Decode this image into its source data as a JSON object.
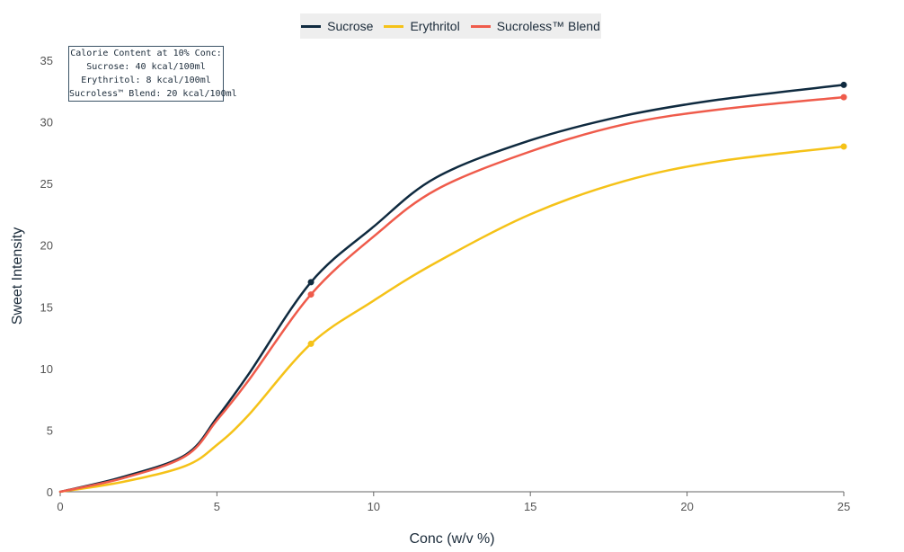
{
  "chart_data": {
    "type": "line",
    "title": "",
    "xlabel": "Conc (w/v %)",
    "ylabel": "Sweet Intensity",
    "xlim": [
      0,
      25
    ],
    "ylim": [
      0,
      35
    ],
    "xticks": [
      0,
      5,
      10,
      15,
      20,
      25
    ],
    "yticks": [
      0,
      5,
      10,
      15,
      20,
      25,
      30,
      35
    ],
    "grid": false,
    "legend_position": "top-center",
    "series": [
      {
        "name": "Sucrose",
        "color": "#0f2a3f",
        "points": [
          [
            0,
            0
          ],
          [
            2,
            1.2
          ],
          [
            4,
            3.0
          ],
          [
            5,
            6.0
          ],
          [
            6,
            9.5
          ],
          [
            8,
            17
          ],
          [
            10,
            21.5
          ],
          [
            12,
            25.5
          ],
          [
            15,
            28.5
          ],
          [
            18,
            30.5
          ],
          [
            21,
            31.8
          ],
          [
            25,
            33
          ]
        ],
        "markers": [
          [
            8,
            17
          ],
          [
            25,
            33
          ]
        ]
      },
      {
        "name": "Erythritol",
        "color": "#f5c218",
        "points": [
          [
            0,
            0
          ],
          [
            2,
            0.8
          ],
          [
            4,
            2.1
          ],
          [
            5,
            3.8
          ],
          [
            6,
            6.2
          ],
          [
            8,
            12
          ],
          [
            10,
            15.5
          ],
          [
            12,
            18.6
          ],
          [
            15,
            22.5
          ],
          [
            18,
            25.2
          ],
          [
            21,
            26.8
          ],
          [
            25,
            28
          ]
        ],
        "markers": [
          [
            8,
            12
          ],
          [
            25,
            28
          ]
        ]
      },
      {
        "name": "Sucroless™ Blend",
        "color": "#ef5b4b",
        "points": [
          [
            0,
            0
          ],
          [
            2,
            1.1
          ],
          [
            4,
            2.9
          ],
          [
            5,
            5.8
          ],
          [
            6,
            9.0
          ],
          [
            8,
            16
          ],
          [
            10,
            20.7
          ],
          [
            12,
            24.5
          ],
          [
            15,
            27.6
          ],
          [
            18,
            29.8
          ],
          [
            21,
            31.0
          ],
          [
            25,
            32
          ]
        ],
        "markers": [
          [
            8,
            16
          ],
          [
            25,
            32
          ]
        ]
      }
    ],
    "annotations": [
      {
        "lines": [
          "Calorie Content at 10% Conc:",
          "Sucrose: 40 kcal/100ml",
          "Erythritol: 8 kcal/100ml",
          "Sucroless™ Blend: 20 kcal/100ml"
        ]
      }
    ]
  }
}
